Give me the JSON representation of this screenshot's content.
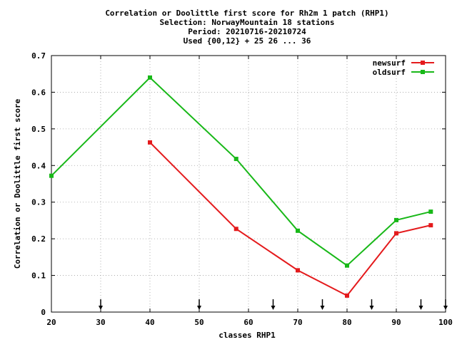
{
  "chart_data": {
    "type": "line",
    "title_lines": [
      "Correlation or Doolittle first score  for Rh2m 1 patch (RHP1)",
      "Selection: NorwayMountain     18 stations",
      "Period: 20210716-20210724",
      "Used {00,12} + 25 26 ... 36"
    ],
    "xlabel": "classes RHP1",
    "ylabel": "Correlation or Doolittle first score",
    "xlim": [
      20,
      100
    ],
    "ylim": [
      0,
      0.7
    ],
    "xticks": [
      20,
      30,
      40,
      50,
      60,
      70,
      80,
      90,
      100
    ],
    "yticks": [
      0,
      0.1,
      0.2,
      0.3,
      0.4,
      0.5,
      0.6,
      0.7
    ],
    "grid": true,
    "legend_position": "top-right",
    "series": [
      {
        "name": "newsurf",
        "color": "#e41a1c",
        "x": [
          40,
          57.5,
          70,
          80,
          90,
          97
        ],
        "y": [
          0.463,
          0.227,
          0.114,
          0.045,
          0.215,
          0.237
        ]
      },
      {
        "name": "oldsurf",
        "color": "#18b818",
        "x": [
          20,
          40,
          57.5,
          70,
          80,
          90,
          97
        ],
        "y": [
          0.372,
          0.64,
          0.418,
          0.222,
          0.127,
          0.251,
          0.274
        ]
      }
    ],
    "markers_x": [
      30,
      50,
      65,
      75,
      85,
      95,
      100
    ]
  }
}
